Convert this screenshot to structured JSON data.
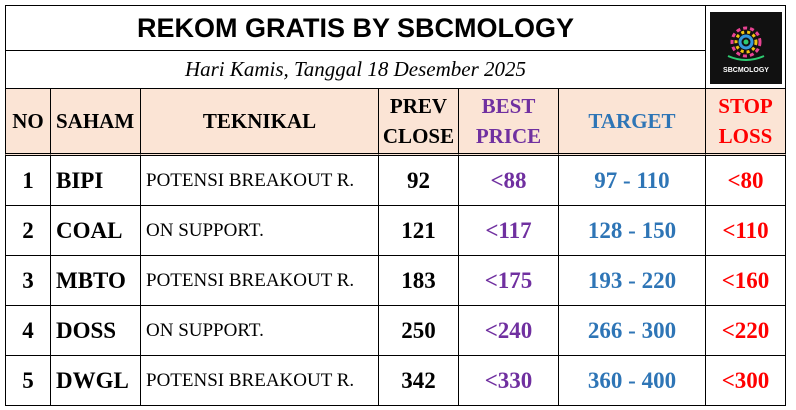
{
  "header": {
    "title": "REKOM GRATIS BY SBCMOLOGY",
    "date": "Hari Kamis, Tanggal 18 Desember 2025",
    "logo_text": "SBCMOLOGY"
  },
  "table": {
    "columns": [
      "NO",
      "SAHAM",
      "TEKNIKAL",
      "PREV CLOSE",
      "BEST PRICE",
      "TARGET",
      "STOP LOSS"
    ],
    "rows": [
      [
        "1",
        "BIPI",
        "POTENSI BREAKOUT R.",
        "92",
        "<88",
        "97 - 110",
        "<80"
      ],
      [
        "2",
        "COAL",
        "ON SUPPORT.",
        "121",
        "<117",
        "128 - 150",
        "<110"
      ],
      [
        "3",
        "MBTO",
        "POTENSI BREAKOUT R.",
        "183",
        "<175",
        "193 - 220",
        "<160"
      ],
      [
        "4",
        "DOSS",
        "ON SUPPORT.",
        "250",
        "<240",
        "266 - 300",
        "<220"
      ],
      [
        "5",
        "DWGL",
        "POTENSI BREAKOUT R.",
        "342",
        "<330",
        "360 - 400",
        "<300"
      ]
    ]
  }
}
